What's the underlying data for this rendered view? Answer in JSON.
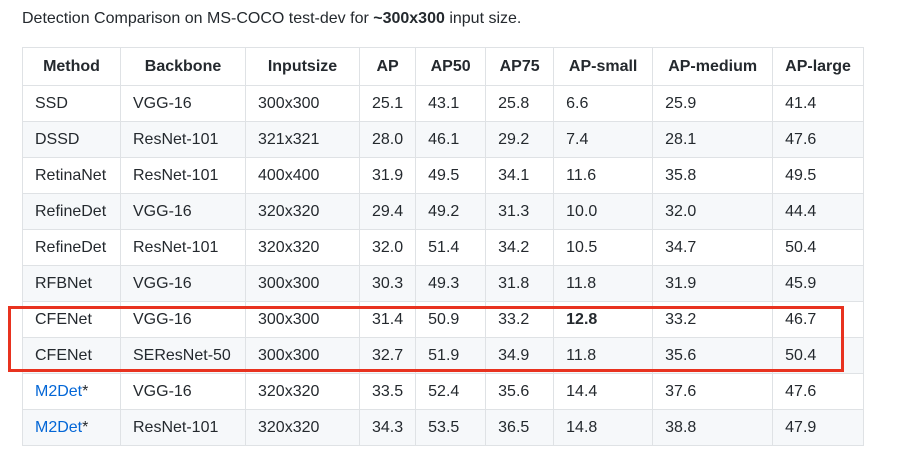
{
  "caption": {
    "prefix": "Detection Comparison on MS-COCO test-dev for ",
    "bold": "~300x300",
    "suffix": " input size."
  },
  "table": {
    "headers": [
      "Method",
      "Backbone",
      "Inputsize",
      "AP",
      "AP50",
      "AP75",
      "AP-small",
      "AP-medium",
      "AP-large"
    ],
    "rows": [
      {
        "method": "SSD",
        "method_suffix": "",
        "is_link": false,
        "backbone": "VGG-16",
        "inputsize": "300x300",
        "ap": "25.1",
        "ap50": "43.1",
        "ap75": "25.8",
        "ap_small": "6.6",
        "ap_small_bold": false,
        "ap_medium": "25.9",
        "ap_large": "41.4"
      },
      {
        "method": "DSSD",
        "method_suffix": "",
        "is_link": false,
        "backbone": "ResNet-101",
        "inputsize": "321x321",
        "ap": "28.0",
        "ap50": "46.1",
        "ap75": "29.2",
        "ap_small": "7.4",
        "ap_small_bold": false,
        "ap_medium": "28.1",
        "ap_large": "47.6"
      },
      {
        "method": "RetinaNet",
        "method_suffix": "",
        "is_link": false,
        "backbone": "ResNet-101",
        "inputsize": "400x400",
        "ap": "31.9",
        "ap50": "49.5",
        "ap75": "34.1",
        "ap_small": "11.6",
        "ap_small_bold": false,
        "ap_medium": "35.8",
        "ap_large": "49.5"
      },
      {
        "method": "RefineDet",
        "method_suffix": "",
        "is_link": false,
        "backbone": "VGG-16",
        "inputsize": "320x320",
        "ap": "29.4",
        "ap50": "49.2",
        "ap75": "31.3",
        "ap_small": "10.0",
        "ap_small_bold": false,
        "ap_medium": "32.0",
        "ap_large": "44.4"
      },
      {
        "method": "RefineDet",
        "method_suffix": "",
        "is_link": false,
        "backbone": "ResNet-101",
        "inputsize": "320x320",
        "ap": "32.0",
        "ap50": "51.4",
        "ap75": "34.2",
        "ap_small": "10.5",
        "ap_small_bold": false,
        "ap_medium": "34.7",
        "ap_large": "50.4"
      },
      {
        "method": "RFBNet",
        "method_suffix": "",
        "is_link": false,
        "backbone": "VGG-16",
        "inputsize": "300x300",
        "ap": "30.3",
        "ap50": "49.3",
        "ap75": "31.8",
        "ap_small": "11.8",
        "ap_small_bold": false,
        "ap_medium": "31.9",
        "ap_large": "45.9"
      },
      {
        "method": "CFENet",
        "method_suffix": "",
        "is_link": false,
        "backbone": "VGG-16",
        "inputsize": "300x300",
        "ap": "31.4",
        "ap50": "50.9",
        "ap75": "33.2",
        "ap_small": "12.8",
        "ap_small_bold": true,
        "ap_medium": "33.2",
        "ap_large": "46.7"
      },
      {
        "method": "CFENet",
        "method_suffix": "",
        "is_link": false,
        "backbone": "SEResNet-50",
        "inputsize": "300x300",
        "ap": "32.7",
        "ap50": "51.9",
        "ap75": "34.9",
        "ap_small": "11.8",
        "ap_small_bold": false,
        "ap_medium": "35.6",
        "ap_large": "50.4"
      },
      {
        "method": "M2Det",
        "method_suffix": "*",
        "is_link": true,
        "backbone": "VGG-16",
        "inputsize": "320x320",
        "ap": "33.5",
        "ap50": "52.4",
        "ap75": "35.6",
        "ap_small": "14.4",
        "ap_small_bold": false,
        "ap_medium": "37.6",
        "ap_large": "47.6"
      },
      {
        "method": "M2Det",
        "method_suffix": "*",
        "is_link": true,
        "backbone": "ResNet-101",
        "inputsize": "320x320",
        "ap": "34.3",
        "ap50": "53.5",
        "ap75": "36.5",
        "ap_small": "14.8",
        "ap_small_bold": false,
        "ap_medium": "38.8",
        "ap_large": "47.9"
      }
    ]
  },
  "highlight": {
    "color": "#e8321f",
    "rows": [
      "CFENet VGG-16",
      "CFENet SEResNet-50"
    ]
  },
  "colors": {
    "link": "#0366d6",
    "text": "#24292e",
    "border": "#dfe2e5",
    "stripe": "#f6f8fa"
  }
}
